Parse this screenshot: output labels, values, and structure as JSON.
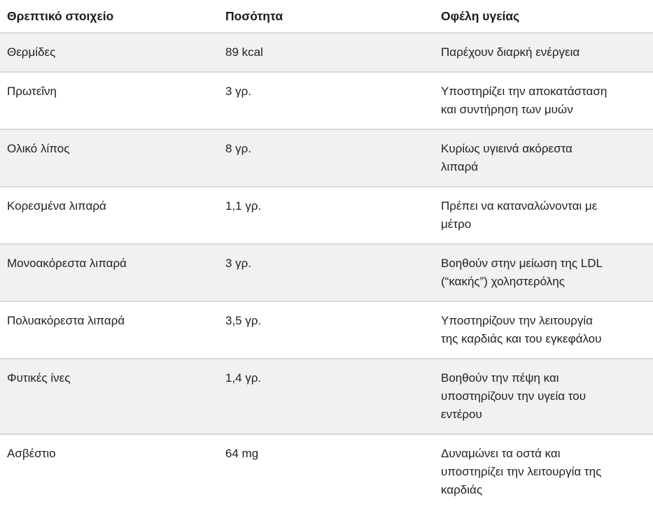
{
  "table": {
    "headers": {
      "nutrient": "Θρεπτικό στοιχείο",
      "amount": "Ποσότητα",
      "benefit": "Οφέλη υγείας"
    },
    "rows": [
      {
        "nutrient": "Θερμίδες",
        "amount": "89 kcal",
        "benefit": "Παρέχουν διαρκή ενέργεια"
      },
      {
        "nutrient": "Πρωτεΐνη",
        "amount": "3 γρ.",
        "benefit": "Υποστηρίζει την αποκατάσταση\nκαι συντήρηση των μυών"
      },
      {
        "nutrient": "Ολικό λίπος",
        "amount": "8 γρ.",
        "benefit": "Κυρίως υγιεινά ακόρεστα\nλιπαρά"
      },
      {
        "nutrient": "Κορεσμένα λιπαρά",
        "amount": "1,1 γρ.",
        "benefit": "Πρέπει να καταναλώνονται με\nμέτρο"
      },
      {
        "nutrient": "Μονοακόρεστα λιπαρά",
        "amount": "3 γρ.",
        "benefit": "Βοηθούν στην μείωση της LDL\n(“κακής”) χοληστερόλης"
      },
      {
        "nutrient": "Πολυακόρεστα λιπαρά",
        "amount": "3,5 γρ.",
        "benefit": "Υποστηρίζουν την λειτουργία\nτης καρδιάς και του εγκεφάλου"
      },
      {
        "nutrient": "Φυτικές ίνες",
        "amount": "1,4 γρ.",
        "benefit": "Βοηθούν την πέψη και\nυποστηρίζουν την υγεία του\nεντέρου"
      },
      {
        "nutrient": "Ασβέστιο",
        "amount": "64 mg",
        "benefit": "Δυναμώνει τα οστά και\nυποστηρίζει την λειτουργία της\nκαρδιάς"
      }
    ]
  },
  "colors": {
    "alt_row_background": "#f1f1f1",
    "row_background": "#ffffff",
    "divider": "#d9d9d9",
    "text": "#202124"
  }
}
